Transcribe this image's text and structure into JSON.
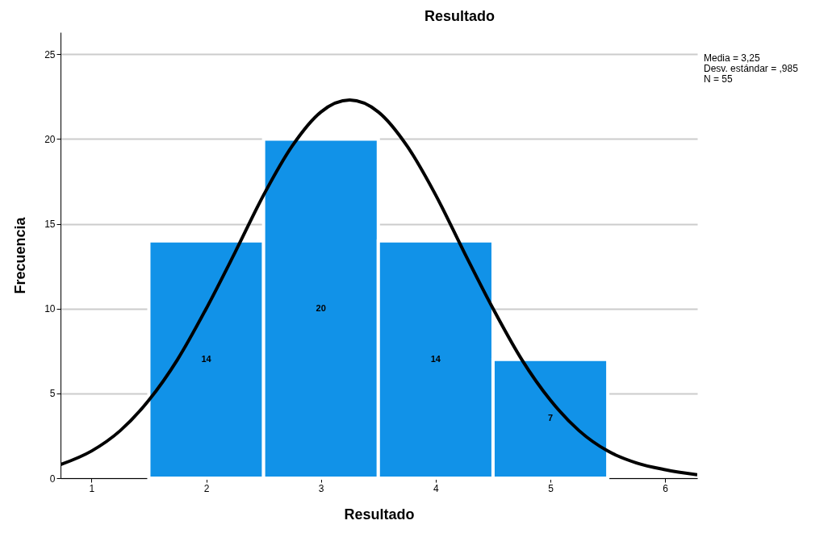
{
  "chart_data": {
    "type": "histogram",
    "title": "Resultado",
    "xlabel": "Resultado",
    "ylabel": "Frecuencia",
    "bins": [
      1.5,
      2.5,
      3.5,
      4.5,
      5.5
    ],
    "values": [
      14,
      20,
      14,
      7
    ],
    "color": "#1192e8",
    "value_labels": [
      "14",
      "20",
      "14",
      "7"
    ],
    "series": [
      {
        "type": "line",
        "color": "#000000",
        "x": [
          0.73,
          1.0,
          1.25,
          1.5,
          1.75,
          2.0,
          2.25,
          2.5,
          2.75,
          3.0,
          3.25,
          3.5,
          3.75,
          4.0,
          4.25,
          4.5,
          4.75,
          5.0,
          5.25,
          5.5,
          5.75,
          6.0,
          6.28
        ],
        "values": [
          0.8,
          1.6,
          2.8,
          4.6,
          7.0,
          10.0,
          13.3,
          16.7,
          19.6,
          21.6,
          22.3,
          21.6,
          19.6,
          16.7,
          13.3,
          10.0,
          7.0,
          4.6,
          2.8,
          1.6,
          0.9,
          0.5,
          0.2
        ]
      }
    ],
    "xlim": [
      0.73,
      6.28
    ],
    "xticks": [
      1,
      2,
      3,
      4,
      5,
      6
    ],
    "ylim": [
      0,
      26.3
    ],
    "yticks": [
      0,
      5,
      10,
      15,
      20,
      25
    ],
    "grid": "y",
    "annotations": [
      "Media = 3,25",
      "Desv. estándar = ,985",
      "N = 55"
    ]
  }
}
